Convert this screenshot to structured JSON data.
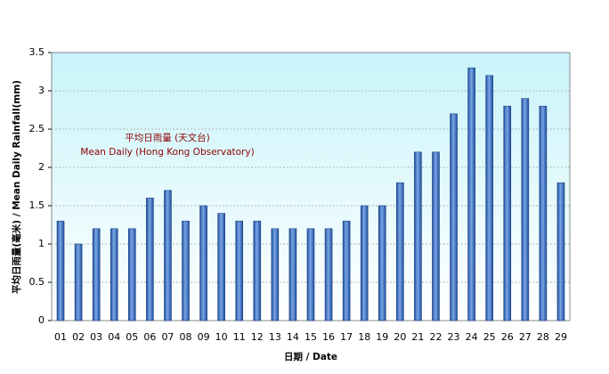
{
  "chart_data": {
    "type": "bar",
    "x_label": "日期 / Date",
    "y_label": "平均日雨量(毫米) / Mean Daily Rainfall(mm)",
    "annotations": [
      "平均日雨量 (天文台)",
      "Mean Daily (Hong Kong Observatory)"
    ],
    "categories": [
      "01",
      "02",
      "03",
      "04",
      "05",
      "06",
      "07",
      "08",
      "09",
      "10",
      "11",
      "12",
      "13",
      "14",
      "15",
      "16",
      "17",
      "18",
      "19",
      "20",
      "21",
      "22",
      "23",
      "24",
      "25",
      "26",
      "27",
      "28",
      "29"
    ],
    "values": [
      1.3,
      1.0,
      1.2,
      1.2,
      1.2,
      1.6,
      1.7,
      1.3,
      1.5,
      1.4,
      1.3,
      1.3,
      1.2,
      1.2,
      1.2,
      1.2,
      1.3,
      1.5,
      1.5,
      1.8,
      2.2,
      2.2,
      2.7,
      3.3,
      3.2,
      2.8,
      2.9,
      2.8,
      1.8
    ],
    "color": "#3a6fc4",
    "ylim": [
      0,
      3.5
    ],
    "yticks": [
      0,
      0.5,
      1,
      1.5,
      2,
      2.5,
      3,
      3.5
    ],
    "grid": true
  }
}
